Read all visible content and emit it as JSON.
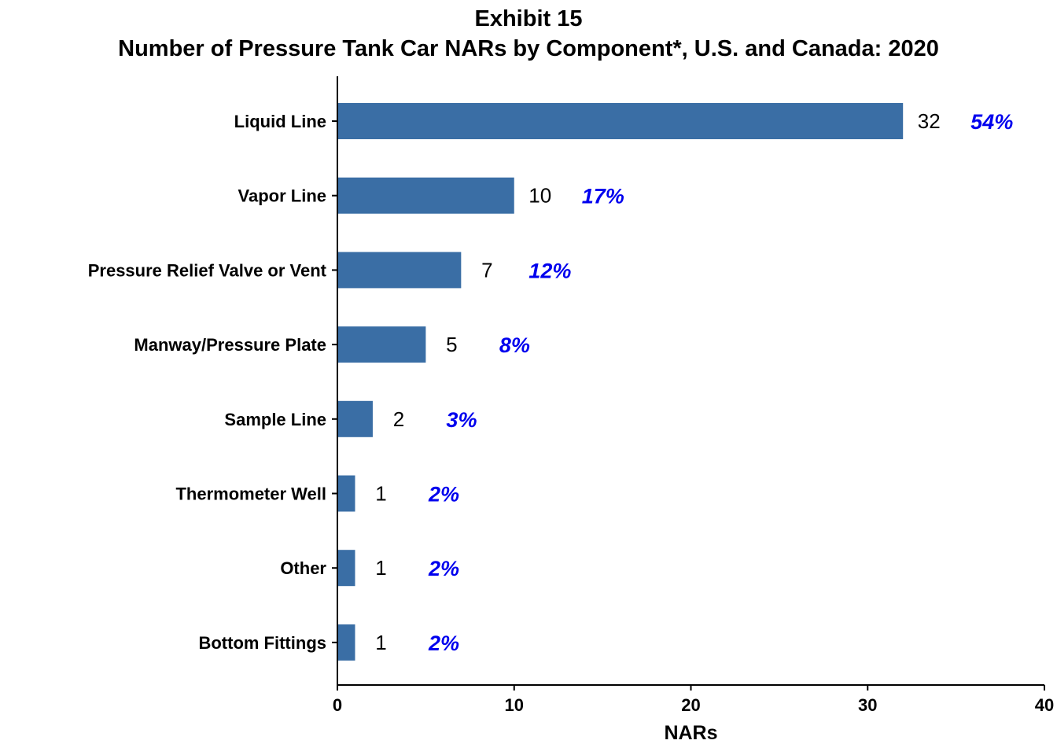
{
  "chart_data": {
    "type": "bar",
    "orientation": "horizontal",
    "title": "Exhibit 15",
    "subtitle": "Number of Pressure Tank Car NARs by Component*, U.S. and Canada: 2020",
    "xlabel": "NARs",
    "ylabel": "",
    "xlim": [
      0,
      40
    ],
    "xticks": [
      "0",
      "10",
      "20",
      "30",
      "40"
    ],
    "grid": false,
    "bar_color": "#3a6ea5",
    "percent_color": "#0000ee",
    "categories": [
      "Liquid Line",
      "Vapor Line",
      "Pressure Relief Valve or Vent",
      "Manway/Pressure Plate",
      "Sample Line",
      "Thermometer Well",
      "Other",
      "Bottom Fittings"
    ],
    "values": [
      32,
      10,
      7,
      5,
      2,
      1,
      1,
      1
    ],
    "value_labels": [
      "32",
      "10",
      "7",
      "5",
      "2",
      "1",
      "1",
      "1"
    ],
    "percent_labels": [
      "54%",
      "17%",
      "12%",
      "8%",
      "3%",
      "2%",
      "2%",
      "2%"
    ]
  }
}
